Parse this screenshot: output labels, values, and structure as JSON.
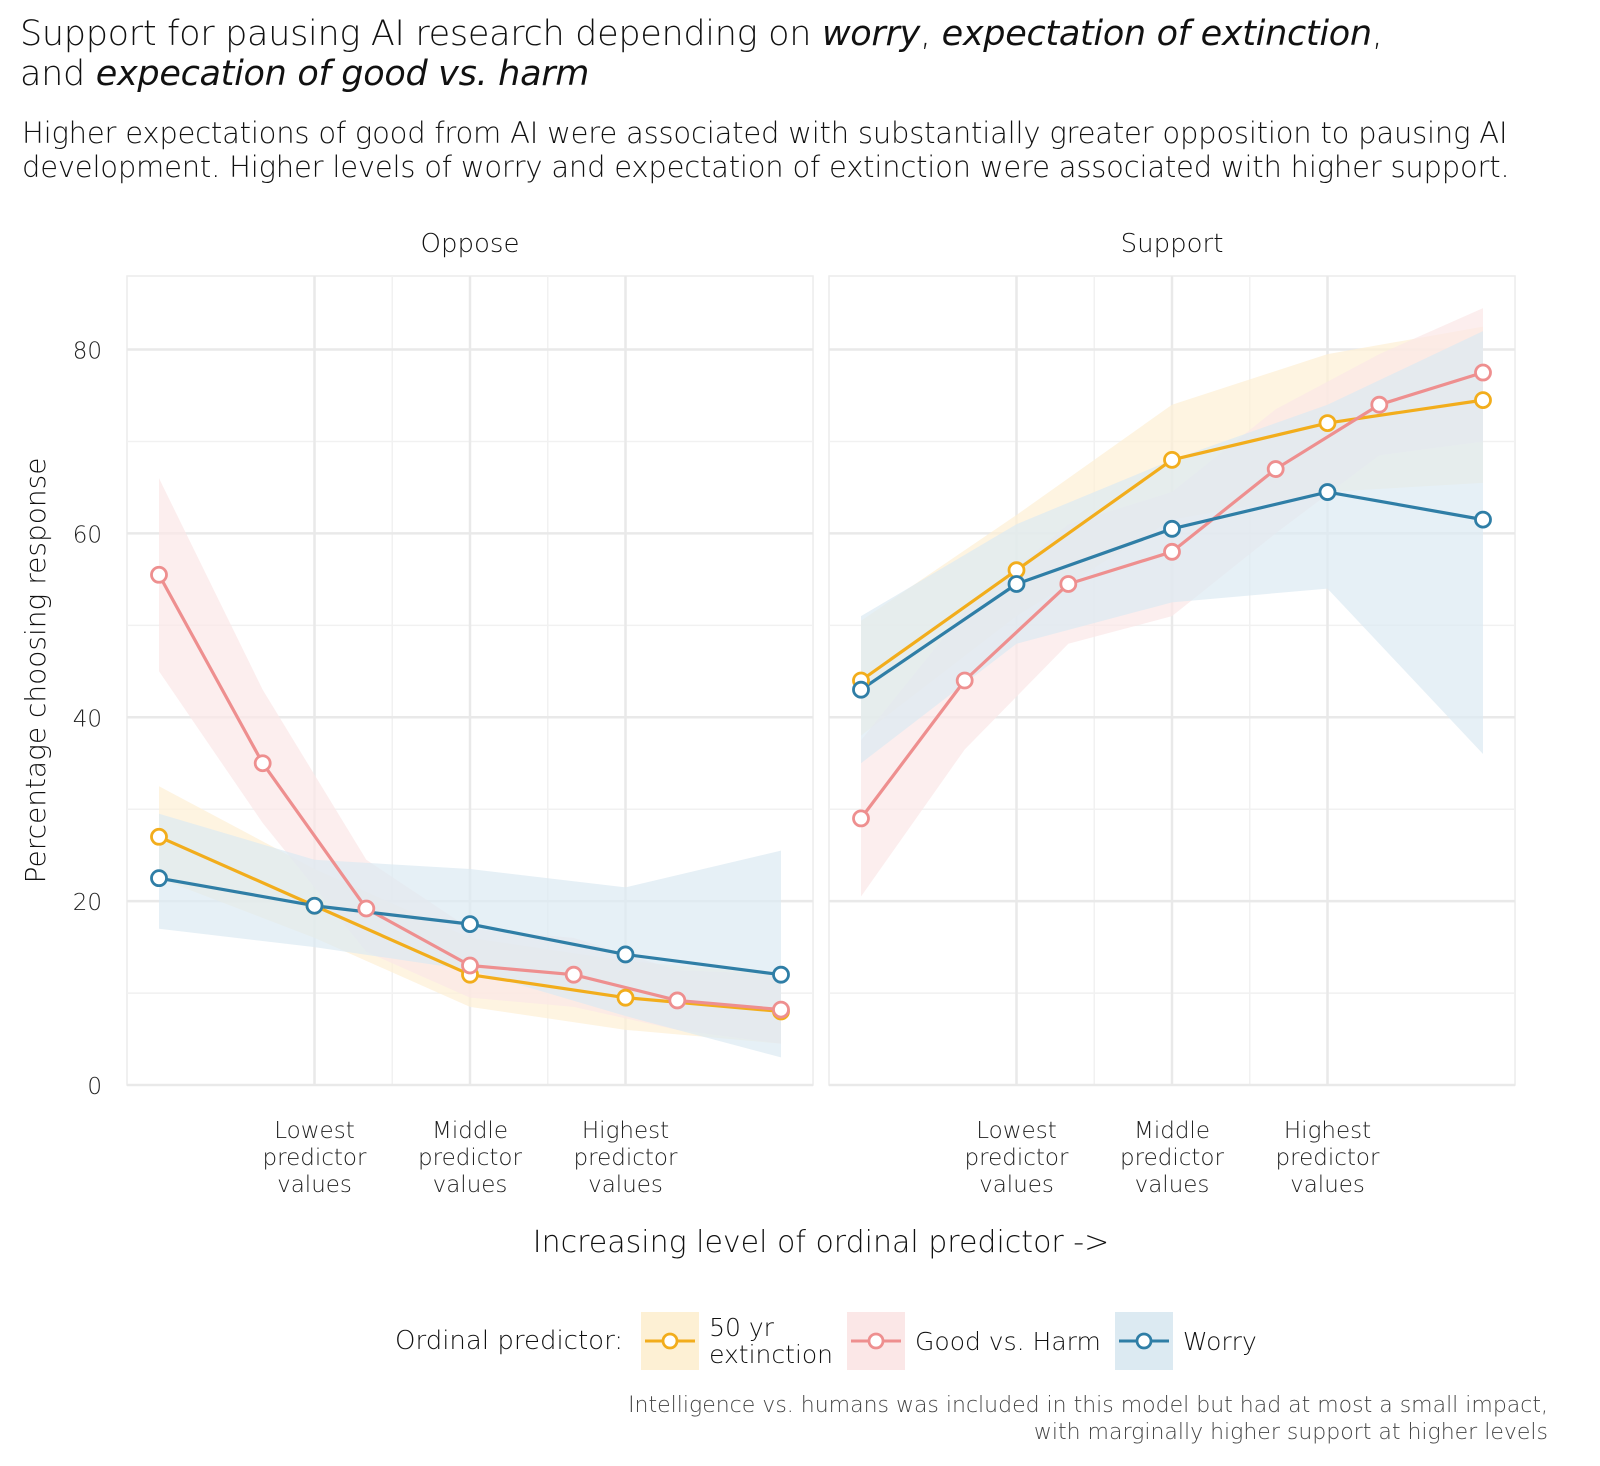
{
  "title_parts": {
    "p1": "Support for pausing AI research depending on ",
    "p2": "worry",
    "p3": ", ",
    "p4": "expectation of extinction",
    "p5": ",",
    "p6": "and ",
    "p7": "expecation of good vs. harm"
  },
  "subtitle": "Higher expectations of good from AI were associated with substantially greater opposition to pausing AI development. Higher levels of worry and expectation of extinction were associated with higher support.",
  "caption_lines": [
    "Intelligence vs. humans was included in this model but had at most a small impact,",
    "with marginally higher support at higher levels"
  ],
  "legend": {
    "title": "Ordinal predictor:",
    "items": [
      {
        "label": "50 yr\nextinction",
        "color": "#f2ad1c",
        "fill": "#fdf0d4"
      },
      {
        "label": "Good vs. Harm",
        "color": "#ee8f8f",
        "fill": "#fbe7e7"
      },
      {
        "label": "Worry",
        "color": "#2f7ea6",
        "fill": "#dceaf2"
      }
    ]
  },
  "chart_data": {
    "type": "line",
    "xlabel": "Increasing level of ordinal predictor ->",
    "ylabel": "Percentage choosing response",
    "ylim": [
      0,
      88
    ],
    "y_ticks": [
      0,
      20,
      40,
      60,
      80
    ],
    "x_ticks": [
      {
        "at": 0.25,
        "label": "Lowest\npredictor\nvalues"
      },
      {
        "at": 0.5,
        "label": "Middle\npredictor\nvalues"
      },
      {
        "at": 0.75,
        "label": "Highest\npredictor\nvalues"
      }
    ],
    "grid": true,
    "legend_position": "bottom",
    "facets": [
      {
        "name": "Oppose",
        "series": [
          {
            "name": "50 yr extinction",
            "color": "#f2ad1c",
            "x": [
              0,
              0.25,
              0.5,
              0.75,
              1.0
            ],
            "y": [
              27,
              19.5,
              12,
              9.5,
              8
            ],
            "lower": [
              22.5,
              16,
              8.5,
              6,
              4.5
            ],
            "upper": [
              32.5,
              23.5,
              16,
              13.5,
              12
            ]
          },
          {
            "name": "Good vs. Harm",
            "color": "#ee8f8f",
            "x": [
              0,
              0.1667,
              0.3333,
              0.5,
              0.6667,
              0.8333,
              1.0
            ],
            "y": [
              55.5,
              35,
              19.2,
              13,
              12,
              9.2,
              8.2
            ],
            "lower": [
              45,
              28.5,
              14.5,
              9.5,
              8.5,
              6,
              4.5
            ],
            "upper": [
              66,
              43,
              24.5,
              17,
              16,
              12.5,
              12
            ]
          },
          {
            "name": "Worry",
            "color": "#2f7ea6",
            "x": [
              0,
              0.25,
              0.5,
              0.75,
              1.0
            ],
            "y": [
              22.5,
              19.5,
              17.5,
              14.2,
              12
            ],
            "lower": [
              17,
              15,
              12.5,
              7.5,
              3
            ],
            "upper": [
              29.5,
              24.5,
              23.5,
              21.5,
              25.5
            ]
          }
        ]
      },
      {
        "name": "Support",
        "series": [
          {
            "name": "50 yr extinction",
            "color": "#f2ad1c",
            "x": [
              0,
              0.25,
              0.5,
              0.75,
              1.0
            ],
            "y": [
              44,
              56,
              68,
              72,
              74.5
            ],
            "lower": [
              38,
              51,
              61.5,
              64.5,
              65.5
            ],
            "upper": [
              50.5,
              62,
              74,
              79.5,
              82.5
            ]
          },
          {
            "name": "Good vs. Harm",
            "color": "#ee8f8f",
            "x": [
              0,
              0.1667,
              0.3333,
              0.5,
              0.6667,
              0.8333,
              1.0
            ],
            "y": [
              29,
              44,
              54.5,
              58,
              67,
              74,
              77.5
            ],
            "lower": [
              20.5,
              36.5,
              48,
              51,
              60,
              68.5,
              70
            ],
            "upper": [
              37.5,
              51.5,
              61,
              64.5,
              73.5,
              79.5,
              84.5
            ]
          },
          {
            "name": "Worry",
            "color": "#2f7ea6",
            "x": [
              0,
              0.25,
              0.5,
              0.75,
              1.0
            ],
            "y": [
              43,
              54.5,
              60.5,
              64.5,
              61.5
            ],
            "lower": [
              35,
              48,
              52.5,
              54,
              36
            ],
            "upper": [
              51,
              61,
              68,
              74,
              82
            ]
          }
        ]
      }
    ]
  }
}
